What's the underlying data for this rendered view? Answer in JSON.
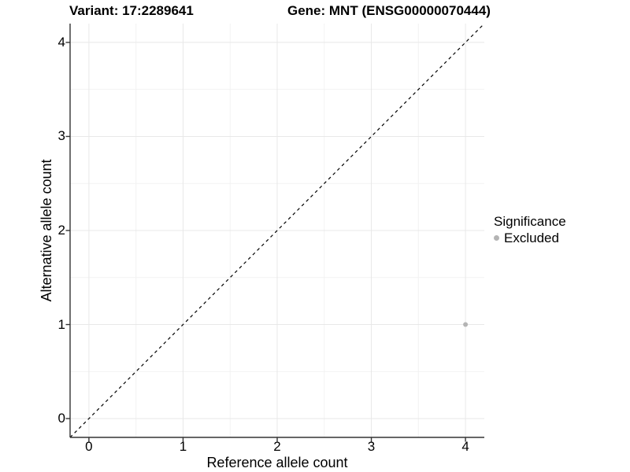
{
  "figure": {
    "title_left": "Variant: 17:2289641",
    "title_right": "Gene: MNT (ENSG00000070444)"
  },
  "chart_data": {
    "type": "scatter",
    "xlabel": "Reference allele count",
    "ylabel": "Alternative allele count",
    "xlim": [
      -0.2,
      4.2
    ],
    "ylim": [
      -0.2,
      4.2
    ],
    "xticks": [
      0,
      1,
      2,
      3,
      4
    ],
    "yticks": [
      0,
      1,
      2,
      3,
      4
    ],
    "x_minor_ticks": [
      0.5,
      1.5,
      2.5,
      3.5
    ],
    "y_minor_ticks": [
      0.5,
      1.5,
      2.5,
      3.5
    ],
    "grid": true,
    "reference_line": {
      "kind": "abline",
      "slope": 1,
      "intercept": 0,
      "style": "dashed",
      "color": "#000000"
    },
    "series": [
      {
        "name": "Excluded",
        "color": "#b4b4b4",
        "points": [
          {
            "x": 4,
            "y": 1
          }
        ]
      }
    ],
    "legend": {
      "title": "Significance",
      "position": "right",
      "entries": [
        {
          "label": "Excluded",
          "color": "#b4b4b4"
        }
      ]
    },
    "colors": {
      "grid_major": "#e8e8e8",
      "grid_minor": "#f2f2f2",
      "axis_line": "#333333",
      "point": "#b4b4b4",
      "text": "#000000"
    }
  }
}
